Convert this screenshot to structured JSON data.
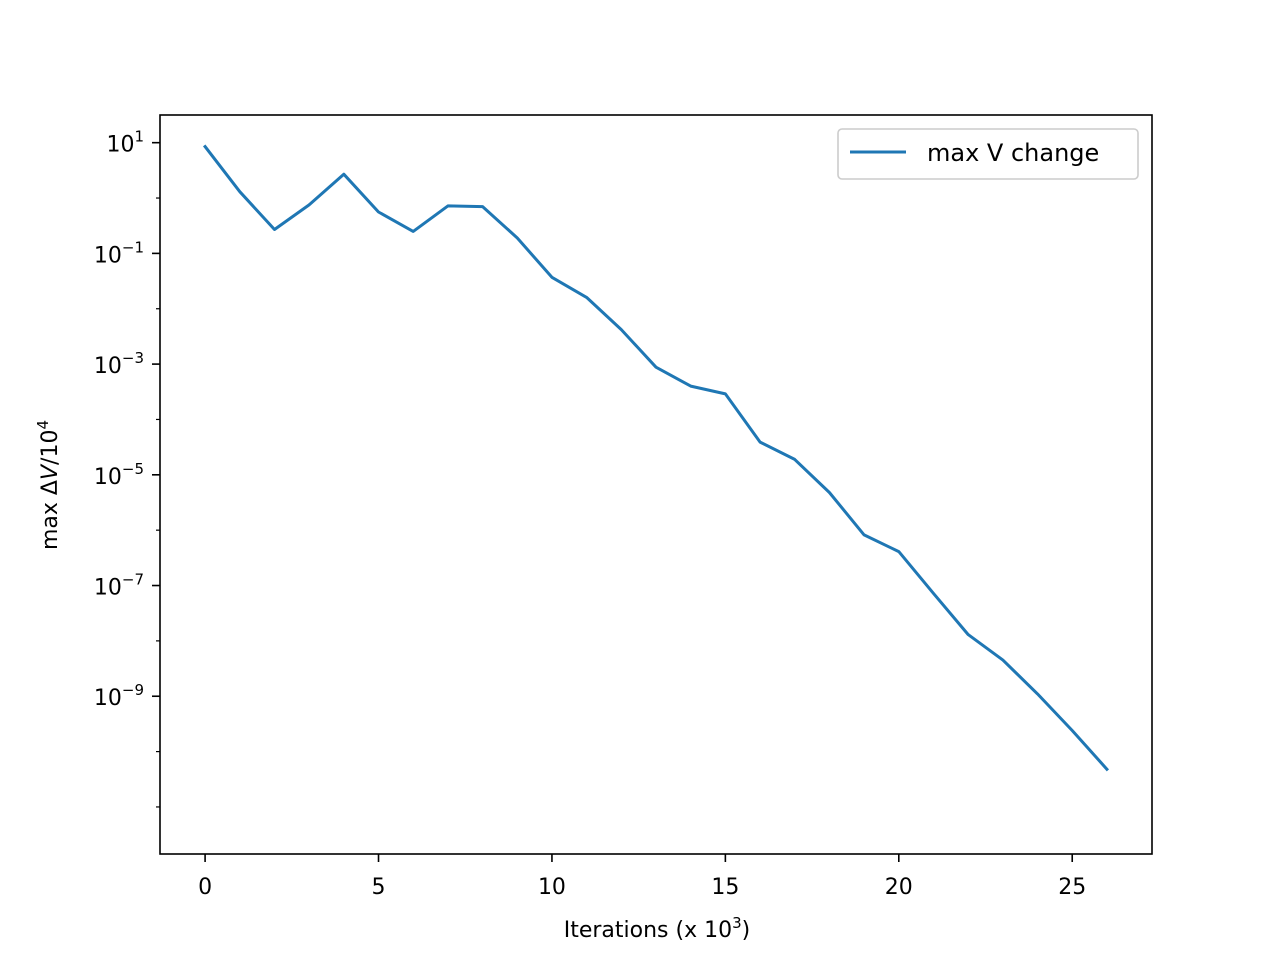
{
  "chart_data": {
    "type": "line",
    "title": "",
    "xlabel": {
      "text": "Iterations (x 10",
      "sup": "3",
      "suffix": ")"
    },
    "ylabel": {
      "text": "max Δ",
      "italic": "V",
      "after": "/10",
      "sup": "4"
    },
    "xlim": [
      -1.3,
      27.3
    ],
    "ylim_log10": [
      -11.85,
      1.5
    ],
    "yscale": "log",
    "grid": false,
    "legend_position": "top-right",
    "x_ticks": [
      {
        "value": 0,
        "label": "0"
      },
      {
        "value": 5,
        "label": "5"
      },
      {
        "value": 10,
        "label": "10"
      },
      {
        "value": 15,
        "label": "15"
      },
      {
        "value": 20,
        "label": "20"
      },
      {
        "value": 25,
        "label": "25"
      }
    ],
    "y_ticks": [
      {
        "exp": 1,
        "base": "10",
        "label": "1"
      },
      {
        "exp": -1,
        "base": "10",
        "label": "−1"
      },
      {
        "exp": -3,
        "base": "10",
        "label": "−3"
      },
      {
        "exp": -5,
        "base": "10",
        "label": "−5"
      },
      {
        "exp": -7,
        "base": "10",
        "label": "−7"
      },
      {
        "exp": -9,
        "base": "10",
        "label": "−9"
      }
    ],
    "series": [
      {
        "name": "max V change",
        "color": "#1f77b4",
        "x": [
          0,
          1,
          2,
          3,
          4,
          5,
          6,
          7,
          8,
          9,
          10,
          11,
          12,
          13,
          14,
          15,
          16,
          17,
          18,
          19,
          20,
          21,
          22,
          23,
          24,
          25,
          26
        ],
        "y": [
          8.5,
          1.3,
          0.27,
          0.75,
          2.7,
          0.56,
          0.25,
          0.72,
          0.7,
          0.19,
          0.037,
          0.016,
          0.0042,
          0.00088,
          0.0004,
          0.00029,
          3.9e-05,
          1.9e-05,
          4.8e-06,
          8.2e-07,
          4.1e-07,
          7.2e-08,
          1.3e-08,
          4.5e-09,
          1.1e-09,
          2.4e-10,
          4.8e-11
        ]
      }
    ]
  }
}
